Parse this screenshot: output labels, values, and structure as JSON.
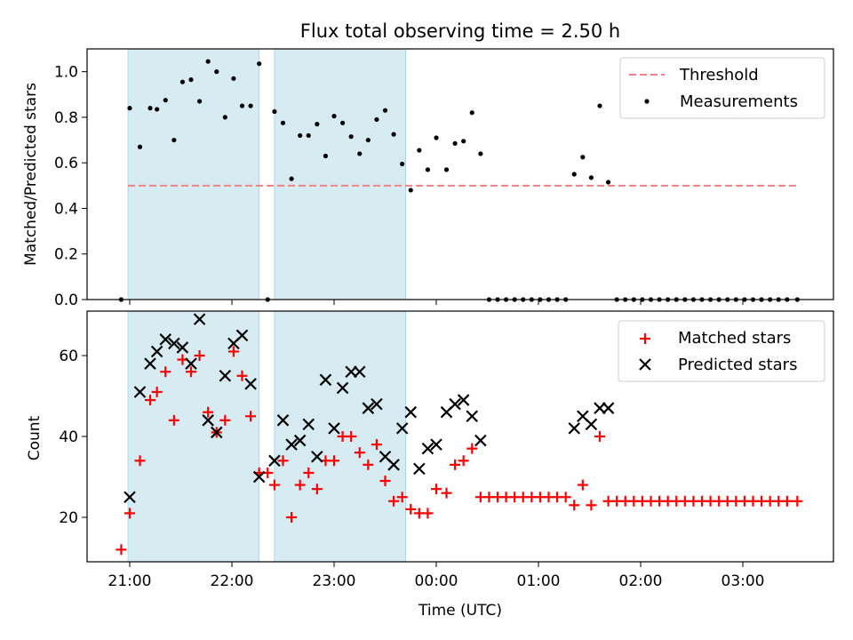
{
  "chart_data": {
    "title": "Flux total observing time = 2.50 h",
    "xlabel": "Time (UTC)",
    "x_ticks": [
      "21:00",
      "22:00",
      "23:00",
      "00:00",
      "01:00",
      "02:00",
      "03:00"
    ],
    "shaded_intervals": [
      [
        "20:59",
        "22:16"
      ],
      [
        "22:25",
        "23:42"
      ]
    ],
    "shade_color": "#add8e6",
    "panels": [
      {
        "type": "scatter",
        "ylabel": "Matched/Predicted stars",
        "ylim": [
          0,
          1.1
        ],
        "yticks": [
          0.0,
          0.2,
          0.4,
          0.6,
          0.8,
          1.0
        ],
        "legend_position": "top-right",
        "threshold": {
          "name": "Threshold",
          "value": 0.5,
          "x_range": [
            "20:59",
            "03:32"
          ],
          "color": "#f08080",
          "style": "dashed"
        },
        "series": [
          {
            "name": "Measurements",
            "marker": "dot",
            "color": "#000000",
            "points": [
              [
                "20:55",
                0.0
              ],
              [
                "21:00",
                0.84
              ],
              [
                "21:06",
                0.67
              ],
              [
                "21:12",
                0.84
              ],
              [
                "21:16",
                0.835
              ],
              [
                "21:21",
                0.875
              ],
              [
                "21:26",
                0.7
              ],
              [
                "21:31",
                0.955
              ],
              [
                "21:36",
                0.965
              ],
              [
                "21:41",
                0.87
              ],
              [
                "21:46",
                1.045
              ],
              [
                "21:51",
                1.0
              ],
              [
                "21:56",
                0.8
              ],
              [
                "22:01",
                0.97
              ],
              [
                "22:06",
                0.85
              ],
              [
                "22:11",
                0.85
              ],
              [
                "22:16",
                1.035
              ],
              [
                "22:21",
                0.0
              ],
              [
                "22:25",
                0.825
              ],
              [
                "22:30",
                0.775
              ],
              [
                "22:35",
                0.53
              ],
              [
                "22:40",
                0.72
              ],
              [
                "22:45",
                0.72
              ],
              [
                "22:50",
                0.77
              ],
              [
                "22:55",
                0.63
              ],
              [
                "23:00",
                0.805
              ],
              [
                "23:05",
                0.775
              ],
              [
                "23:10",
                0.715
              ],
              [
                "23:15",
                0.64
              ],
              [
                "23:20",
                0.7
              ],
              [
                "23:25",
                0.79
              ],
              [
                "23:30",
                0.83
              ],
              [
                "23:35",
                0.725
              ],
              [
                "23:40",
                0.595
              ],
              [
                "23:45",
                0.48
              ],
              [
                "23:50",
                0.655
              ],
              [
                "23:55",
                0.57
              ],
              [
                "00:00",
                0.71
              ],
              [
                "00:06",
                0.57
              ],
              [
                "00:11",
                0.685
              ],
              [
                "00:16",
                0.695
              ],
              [
                "00:21",
                0.82
              ],
              [
                "00:26",
                0.64
              ],
              [
                "00:31",
                0.0
              ],
              [
                "00:36",
                0.0
              ],
              [
                "00:41",
                0.0
              ],
              [
                "00:46",
                0.0
              ],
              [
                "00:51",
                0.0
              ],
              [
                "00:56",
                0.0
              ],
              [
                "01:01",
                0.0
              ],
              [
                "01:06",
                0.0
              ],
              [
                "01:11",
                0.0
              ],
              [
                "01:16",
                0.0
              ],
              [
                "01:21",
                0.55
              ],
              [
                "01:26",
                0.625
              ],
              [
                "01:31",
                0.535
              ],
              [
                "01:36",
                0.85
              ],
              [
                "01:41",
                0.515
              ],
              [
                "01:46",
                0.0
              ],
              [
                "01:51",
                0.0
              ],
              [
                "01:56",
                0.0
              ],
              [
                "02:01",
                0.0
              ],
              [
                "02:06",
                0.0
              ],
              [
                "02:11",
                0.0
              ],
              [
                "02:16",
                0.0
              ],
              [
                "02:21",
                0.0
              ],
              [
                "02:26",
                0.0
              ],
              [
                "02:31",
                0.0
              ],
              [
                "02:36",
                0.0
              ],
              [
                "02:41",
                0.0
              ],
              [
                "02:46",
                0.0
              ],
              [
                "02:51",
                0.0
              ],
              [
                "02:56",
                0.0
              ],
              [
                "03:01",
                0.0
              ],
              [
                "03:06",
                0.0
              ],
              [
                "03:11",
                0.0
              ],
              [
                "03:16",
                0.0
              ],
              [
                "03:21",
                0.0
              ],
              [
                "03:26",
                0.0
              ],
              [
                "03:32",
                0.0
              ]
            ]
          }
        ]
      },
      {
        "type": "scatter",
        "ylabel": "Count",
        "ylim": [
          9,
          71
        ],
        "yticks": [
          20,
          40,
          60
        ],
        "legend_position": "top-right",
        "series": [
          {
            "name": "Matched stars",
            "marker": "plus",
            "color": "#ff0000",
            "points": [
              [
                "20:55",
                12
              ],
              [
                "21:00",
                21
              ],
              [
                "21:06",
                34
              ],
              [
                "21:12",
                49
              ],
              [
                "21:16",
                51
              ],
              [
                "21:21",
                56
              ],
              [
                "21:26",
                44
              ],
              [
                "21:31",
                59
              ],
              [
                "21:36",
                56
              ],
              [
                "21:41",
                60
              ],
              [
                "21:46",
                46
              ],
              [
                "21:51",
                41
              ],
              [
                "21:56",
                44
              ],
              [
                "22:01",
                61
              ],
              [
                "22:06",
                55
              ],
              [
                "22:11",
                45
              ],
              [
                "22:16",
                31
              ],
              [
                "22:21",
                31
              ],
              [
                "22:25",
                28
              ],
              [
                "22:30",
                34
              ],
              [
                "22:35",
                20
              ],
              [
                "22:40",
                28
              ],
              [
                "22:45",
                31
              ],
              [
                "22:50",
                27
              ],
              [
                "22:55",
                34
              ],
              [
                "23:00",
                34
              ],
              [
                "23:05",
                40
              ],
              [
                "23:10",
                40
              ],
              [
                "23:15",
                36
              ],
              [
                "23:20",
                33
              ],
              [
                "23:25",
                38
              ],
              [
                "23:30",
                29
              ],
              [
                "23:35",
                24
              ],
              [
                "23:40",
                25
              ],
              [
                "23:45",
                22
              ],
              [
                "23:50",
                21
              ],
              [
                "23:55",
                21
              ],
              [
                "00:00",
                27
              ],
              [
                "00:06",
                26
              ],
              [
                "00:11",
                33
              ],
              [
                "00:16",
                34
              ],
              [
                "00:21",
                37
              ],
              [
                "00:26",
                25
              ],
              [
                "00:31",
                25
              ],
              [
                "00:36",
                25
              ],
              [
                "00:41",
                25
              ],
              [
                "00:46",
                25
              ],
              [
                "00:51",
                25
              ],
              [
                "00:56",
                25
              ],
              [
                "01:01",
                25
              ],
              [
                "01:06",
                25
              ],
              [
                "01:11",
                25
              ],
              [
                "01:16",
                25
              ],
              [
                "01:21",
                23
              ],
              [
                "01:26",
                28
              ],
              [
                "01:31",
                23
              ],
              [
                "01:36",
                40
              ],
              [
                "01:41",
                24
              ],
              [
                "01:46",
                24
              ],
              [
                "01:51",
                24
              ],
              [
                "01:56",
                24
              ],
              [
                "02:01",
                24
              ],
              [
                "02:06",
                24
              ],
              [
                "02:11",
                24
              ],
              [
                "02:16",
                24
              ],
              [
                "02:21",
                24
              ],
              [
                "02:26",
                24
              ],
              [
                "02:31",
                24
              ],
              [
                "02:36",
                24
              ],
              [
                "02:41",
                24
              ],
              [
                "02:46",
                24
              ],
              [
                "02:51",
                24
              ],
              [
                "02:56",
                24
              ],
              [
                "03:01",
                24
              ],
              [
                "03:06",
                24
              ],
              [
                "03:11",
                24
              ],
              [
                "03:16",
                24
              ],
              [
                "03:21",
                24
              ],
              [
                "03:26",
                24
              ],
              [
                "03:32",
                24
              ]
            ]
          },
          {
            "name": "Predicted stars",
            "marker": "x",
            "color": "#000000",
            "points": [
              [
                "21:00",
                25
              ],
              [
                "21:06",
                51
              ],
              [
                "21:12",
                58
              ],
              [
                "21:16",
                61
              ],
              [
                "21:21",
                64
              ],
              [
                "21:26",
                63
              ],
              [
                "21:31",
                62
              ],
              [
                "21:36",
                58
              ],
              [
                "21:41",
                69
              ],
              [
                "21:46",
                44
              ],
              [
                "21:51",
                41
              ],
              [
                "21:56",
                55
              ],
              [
                "22:01",
                63
              ],
              [
                "22:06",
                65
              ],
              [
                "22:11",
                53
              ],
              [
                "22:16",
                30
              ],
              [
                "22:25",
                34
              ],
              [
                "22:30",
                44
              ],
              [
                "22:35",
                38
              ],
              [
                "22:40",
                39
              ],
              [
                "22:45",
                43
              ],
              [
                "22:50",
                35
              ],
              [
                "22:55",
                54
              ],
              [
                "23:00",
                42
              ],
              [
                "23:05",
                52
              ],
              [
                "23:10",
                56
              ],
              [
                "23:15",
                56
              ],
              [
                "23:20",
                47
              ],
              [
                "23:25",
                48
              ],
              [
                "23:30",
                35
              ],
              [
                "23:35",
                33
              ],
              [
                "23:40",
                42
              ],
              [
                "23:45",
                46
              ],
              [
                "23:50",
                32
              ],
              [
                "23:55",
                37
              ],
              [
                "00:00",
                38
              ],
              [
                "00:06",
                46
              ],
              [
                "00:11",
                48
              ],
              [
                "00:16",
                49
              ],
              [
                "00:21",
                45
              ],
              [
                "00:26",
                39
              ],
              [
                "01:21",
                42
              ],
              [
                "01:26",
                45
              ],
              [
                "01:31",
                43
              ],
              [
                "01:36",
                47
              ],
              [
                "01:41",
                47
              ]
            ]
          }
        ]
      }
    ]
  }
}
